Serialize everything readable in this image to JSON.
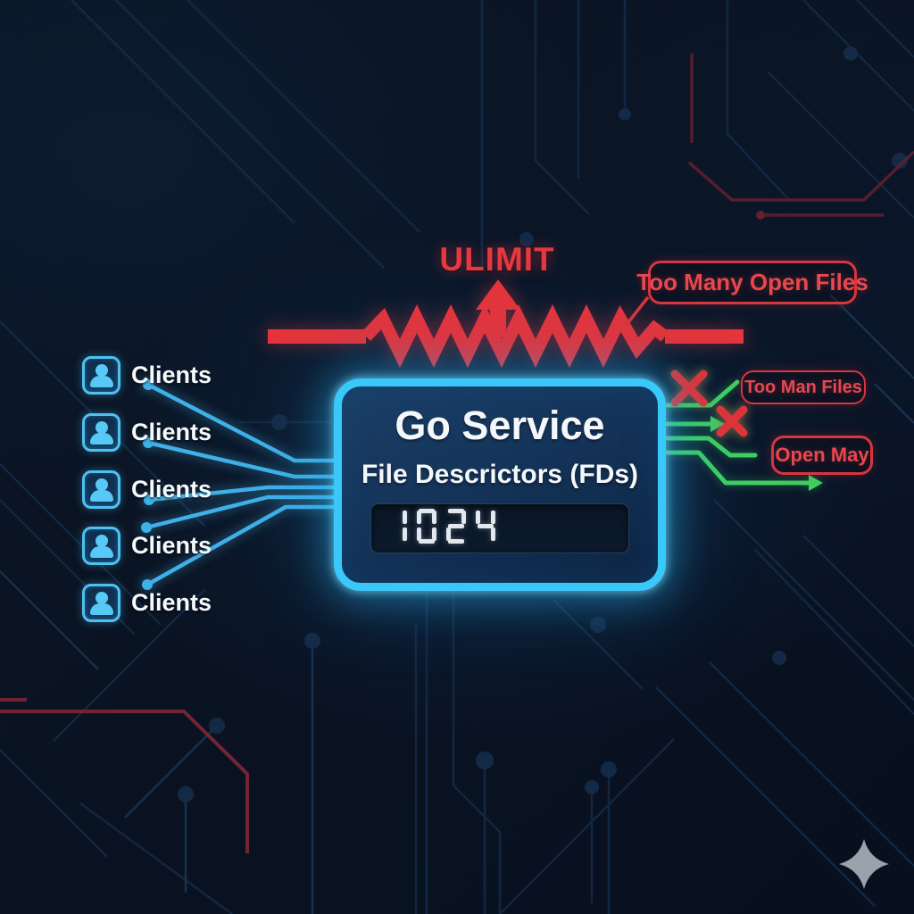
{
  "limit": {
    "label": "ULIMIT"
  },
  "callouts": {
    "top": "Too Many Open Files",
    "right_top": "Too Man Files",
    "right_bottom": "Open May"
  },
  "service_box": {
    "title": "Go Service",
    "subtitle": "File Descrictors (FDs)",
    "fd_display": "1024"
  },
  "clients": {
    "items": [
      "Clients",
      "Clients",
      "Clients",
      "Clients",
      "Clients"
    ]
  },
  "icons": {
    "client": "user-icon",
    "limit_arrow": "arrow-up-icon",
    "rejected": "x-icon",
    "flow": "arrow-right-icon",
    "watermark": "sparkle-icon"
  },
  "colors": {
    "background": "#0a1322",
    "accent_cyan": "#3ac8f8",
    "line_blue": "#3fb0e8",
    "alert_red": "#e5383f",
    "badge_red": "#e8474e",
    "success_green": "#3ed060",
    "text_white": "#f4f8fb",
    "watermark_gray": "#9aa2ac"
  }
}
